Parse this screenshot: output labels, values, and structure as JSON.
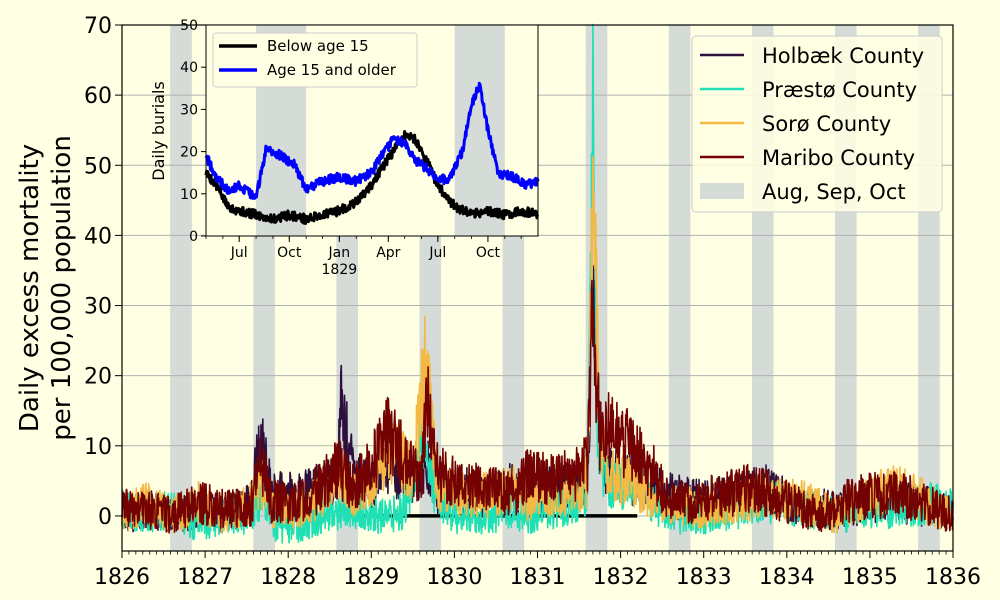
{
  "chart_data": [
    {
      "type": "line",
      "ylabel": [
        "Daily excess mortality",
        "per 100,000 population"
      ],
      "xlabel": "",
      "xlim": [
        1826,
        1836
      ],
      "ylim": [
        -5,
        70
      ],
      "x_ticks": [
        "1826",
        "1827",
        "1828",
        "1829",
        "1830",
        "1831",
        "1832",
        "1833",
        "1834",
        "1835",
        "1836"
      ],
      "y_ticks": [
        "0",
        "10",
        "20",
        "30",
        "40",
        "50",
        "60",
        "70"
      ],
      "grid": "horizontal",
      "shaded_periods": [
        [
          1826.58,
          1826.84
        ],
        [
          1827.58,
          1827.84
        ],
        [
          1828.58,
          1828.84
        ],
        [
          1829.58,
          1829.84
        ],
        [
          1830.58,
          1830.84
        ],
        [
          1831.58,
          1831.84
        ],
        [
          1832.58,
          1832.84
        ],
        [
          1833.58,
          1833.84
        ],
        [
          1834.58,
          1834.84
        ],
        [
          1835.58,
          1835.84
        ]
      ],
      "zero_line": [
        1828.9,
        1832.2
      ],
      "legend_position": "upper right",
      "legend": [
        {
          "label": "Holbæk County",
          "color": "#2d0f3e",
          "kind": "line"
        },
        {
          "label": "Præstø County",
          "color": "#1fe0b5",
          "kind": "line"
        },
        {
          "label": "Sorø County",
          "color": "#f4b844",
          "kind": "line"
        },
        {
          "label": "Maribo County",
          "color": "#740202",
          "kind": "line"
        },
        {
          "label": "Aug, Sep, Oct",
          "color": "#d5dbd6",
          "kind": "patch"
        }
      ],
      "series": [
        {
          "name": "Holbæk County",
          "color": "#2d0f3e",
          "x": [
            1826.0,
            1826.3,
            1826.6,
            1826.9,
            1827.2,
            1827.55,
            1827.67,
            1827.8,
            1828.1,
            1828.4,
            1828.6,
            1828.63,
            1828.75,
            1829.0,
            1829.2,
            1829.5,
            1829.65,
            1829.8,
            1830.1,
            1830.4,
            1830.7,
            1830.9,
            1831.2,
            1831.5,
            1831.6,
            1831.67,
            1831.75,
            1831.9,
            1832.2,
            1832.6,
            1833.0,
            1833.4,
            1833.8,
            1834.2,
            1834.6,
            1835.0,
            1835.4,
            1835.8,
            1836.0
          ],
          "y": [
            0,
            1,
            0,
            1,
            0,
            2,
            11,
            3,
            3,
            4,
            6,
            16,
            8,
            4,
            7,
            5,
            8,
            3,
            4,
            3,
            4,
            3,
            4,
            4,
            5,
            37,
            8,
            6,
            5,
            3,
            2,
            3,
            4,
            1,
            1,
            2,
            2,
            1,
            0
          ]
        },
        {
          "name": "Præstø County",
          "color": "#1fe0b5",
          "x": [
            1826.0,
            1826.3,
            1826.6,
            1826.9,
            1827.2,
            1827.55,
            1827.7,
            1827.85,
            1828.1,
            1828.4,
            1828.7,
            1829.0,
            1829.2,
            1829.4,
            1829.6,
            1829.75,
            1830.0,
            1830.4,
            1830.7,
            1830.9,
            1831.2,
            1831.5,
            1831.6,
            1831.67,
            1831.72,
            1831.85,
            1832.2,
            1832.6,
            1833.0,
            1833.4,
            1833.8,
            1834.2,
            1834.6,
            1835.0,
            1835.4,
            1835.8,
            1836.0
          ],
          "y": [
            1,
            0,
            1,
            -1,
            0,
            0,
            3,
            -1,
            -1,
            0,
            1,
            0,
            0,
            1,
            10,
            4,
            0,
            0,
            1,
            0,
            1,
            2,
            4,
            62,
            10,
            5,
            4,
            0,
            0,
            1,
            2,
            1,
            0,
            1,
            1,
            2,
            1
          ]
        },
        {
          "name": "Sorø County",
          "color": "#f4b844",
          "x": [
            1826.0,
            1826.3,
            1826.6,
            1826.9,
            1827.2,
            1827.55,
            1827.67,
            1827.8,
            1828.1,
            1828.4,
            1828.6,
            1828.8,
            1829.0,
            1829.2,
            1829.5,
            1829.65,
            1829.8,
            1830.1,
            1830.4,
            1830.7,
            1830.9,
            1831.2,
            1831.5,
            1831.6,
            1831.67,
            1831.75,
            1831.9,
            1832.2,
            1832.6,
            1833.0,
            1833.4,
            1833.8,
            1834.2,
            1834.6,
            1835.0,
            1835.4,
            1835.8,
            1836.0
          ],
          "y": [
            0,
            2,
            0,
            2,
            0,
            2,
            5,
            1,
            1,
            3,
            6,
            3,
            4,
            10,
            6,
            22,
            4,
            3,
            3,
            4,
            2,
            3,
            4,
            5,
            50,
            10,
            6,
            4,
            2,
            1,
            2,
            3,
            2,
            0,
            3,
            4,
            1,
            0
          ]
        },
        {
          "name": "Maribo County",
          "color": "#740202",
          "x": [
            1826.0,
            1826.3,
            1826.6,
            1826.9,
            1827.2,
            1827.55,
            1827.67,
            1827.8,
            1828.1,
            1828.4,
            1828.6,
            1828.8,
            1829.0,
            1829.2,
            1829.4,
            1829.6,
            1829.66,
            1829.8,
            1830.1,
            1830.4,
            1830.7,
            1830.9,
            1831.2,
            1831.5,
            1831.6,
            1831.66,
            1831.75,
            1831.9,
            1832.1,
            1832.4,
            1832.6,
            1832.9,
            1833.2,
            1833.6,
            1834.0,
            1834.4,
            1834.7,
            1835.0,
            1835.4,
            1835.8,
            1836.0
          ],
          "y": [
            1,
            1,
            0,
            2,
            1,
            1,
            8,
            2,
            2,
            4,
            7,
            4,
            7,
            12,
            8,
            5,
            17,
            6,
            5,
            4,
            3,
            6,
            5,
            6,
            8,
            30,
            12,
            12,
            10,
            6,
            2,
            2,
            3,
            4,
            2,
            0,
            2,
            3,
            3,
            1,
            0
          ]
        }
      ]
    },
    {
      "type": "line",
      "ylabel": "Daily burials",
      "xlabel": "",
      "ylim": [
        0,
        50
      ],
      "xlim": [
        "1828-05-01",
        "1830-01-01"
      ],
      "y_ticks": [
        "0",
        "10",
        "20",
        "30",
        "40",
        "50"
      ],
      "x_ticks": [
        {
          "date": "1828-07-01",
          "label": "Jul"
        },
        {
          "date": "1828-10-01",
          "label": "Oct"
        },
        {
          "date": "1829-01-01",
          "label": "Jan",
          "sublabel": "1829"
        },
        {
          "date": "1829-04-01",
          "label": "Apr"
        },
        {
          "date": "1829-07-01",
          "label": "Jul"
        },
        {
          "date": "1829-10-01",
          "label": "Oct"
        }
      ],
      "shaded_periods": [
        [
          "1828-08-01",
          "1828-11-01"
        ],
        [
          "1829-08-01",
          "1829-11-01"
        ]
      ],
      "legend_position": "upper left",
      "series": [
        {
          "name": "Below age 15",
          "color": "#000000",
          "x": [
            "1828-05-01",
            "1828-05-20",
            "1828-06-10",
            "1828-07-01",
            "1828-08-01",
            "1828-09-01",
            "1828-10-01",
            "1828-11-01",
            "1828-12-01",
            "1829-01-01",
            "1829-02-01",
            "1829-03-01",
            "1829-03-20",
            "1829-04-10",
            "1829-05-01",
            "1829-05-20",
            "1829-06-10",
            "1829-07-01",
            "1829-08-01",
            "1829-09-01",
            "1829-10-01",
            "1829-11-01",
            "1829-12-01",
            "1830-01-01"
          ],
          "y": [
            15,
            12,
            7,
            6,
            5,
            4,
            5,
            4,
            5,
            6,
            8,
            12,
            16,
            20,
            24,
            23,
            18,
            12,
            7,
            5,
            6,
            5,
            6,
            5
          ]
        },
        {
          "name": "Age 15 and older",
          "color": "#0000ff",
          "x": [
            "1828-05-01",
            "1828-05-20",
            "1828-06-10",
            "1828-07-01",
            "1828-08-01",
            "1828-08-20",
            "1828-09-15",
            "1828-10-10",
            "1828-11-01",
            "1828-12-01",
            "1829-01-01",
            "1829-02-01",
            "1829-03-01",
            "1829-03-20",
            "1829-04-10",
            "1829-05-01",
            "1829-05-20",
            "1829-06-10",
            "1829-07-01",
            "1829-07-25",
            "1829-08-15",
            "1829-09-01",
            "1829-09-15",
            "1829-10-01",
            "1829-10-20",
            "1829-11-15",
            "1829-12-10",
            "1830-01-01"
          ],
          "y": [
            19,
            14,
            11,
            12,
            9,
            21,
            19,
            17,
            11,
            13,
            14,
            13,
            15,
            19,
            23,
            22,
            18,
            16,
            13,
            14,
            20,
            31,
            36,
            25,
            15,
            14,
            12,
            13
          ]
        }
      ]
    }
  ]
}
